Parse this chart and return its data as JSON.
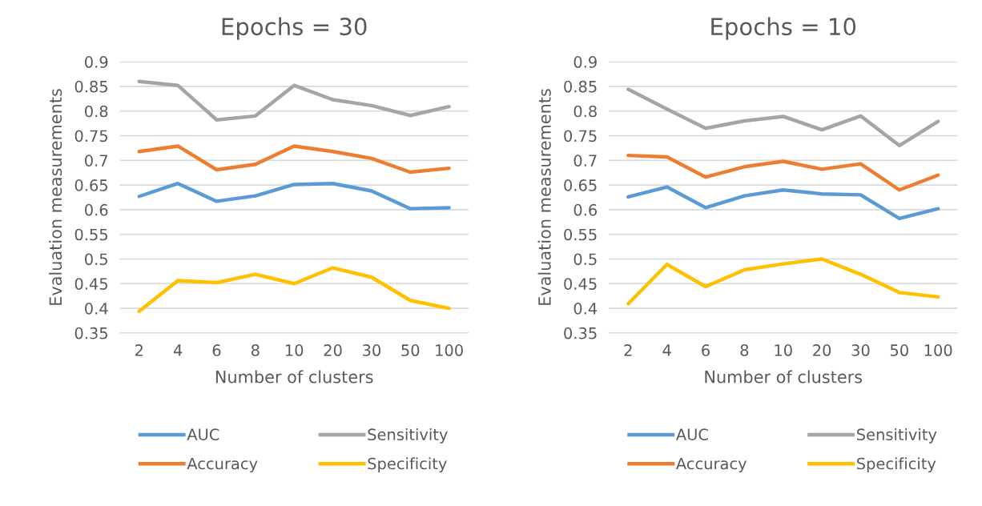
{
  "chart_data": [
    {
      "type": "line",
      "title": "Epochs = 30",
      "xlabel": "Number of clusters",
      "ylabel": "Evaluation measurements",
      "categories": [
        "2",
        "4",
        "6",
        "8",
        "10",
        "20",
        "30",
        "50",
        "100"
      ],
      "ylim": [
        0.35,
        0.9
      ],
      "yticks": [
        0.35,
        0.4,
        0.45,
        0.5,
        0.55,
        0.6,
        0.65,
        0.7,
        0.75,
        0.8,
        0.85,
        0.9
      ],
      "grid": "y",
      "legend": "bottom",
      "marker": "none",
      "line_style": "solid",
      "series": [
        {
          "name": "AUC",
          "color": "#5b9bd5",
          "values": [
            0.627,
            0.653,
            0.617,
            0.628,
            0.651,
            0.653,
            0.638,
            0.602,
            0.604
          ]
        },
        {
          "name": "Accuracy",
          "color": "#ed7d31",
          "values": [
            0.718,
            0.729,
            0.681,
            0.692,
            0.729,
            0.718,
            0.704,
            0.676,
            0.684
          ]
        },
        {
          "name": "Sensitivity",
          "color": "#a5a5a5",
          "values": [
            0.86,
            0.852,
            0.782,
            0.79,
            0.852,
            0.823,
            0.811,
            0.791,
            0.809
          ]
        },
        {
          "name": "Specificity",
          "color": "#ffc000",
          "values": [
            0.394,
            0.456,
            0.452,
            0.469,
            0.45,
            0.482,
            0.463,
            0.416,
            0.4
          ]
        }
      ]
    },
    {
      "type": "line",
      "title": "Epochs = 10",
      "xlabel": "Number of clusters",
      "ylabel": "Evaluation measurements",
      "categories": [
        "2",
        "4",
        "6",
        "8",
        "10",
        "20",
        "30",
        "50",
        "100"
      ],
      "ylim": [
        0.35,
        0.9
      ],
      "yticks": [
        0.35,
        0.4,
        0.45,
        0.5,
        0.55,
        0.6,
        0.65,
        0.7,
        0.75,
        0.8,
        0.85,
        0.9
      ],
      "grid": "y",
      "legend": "bottom",
      "marker": "none",
      "line_style": "solid",
      "series": [
        {
          "name": "AUC",
          "color": "#5b9bd5",
          "values": [
            0.626,
            0.646,
            0.604,
            0.628,
            0.64,
            0.632,
            0.63,
            0.582,
            0.602
          ]
        },
        {
          "name": "Accuracy",
          "color": "#ed7d31",
          "values": [
            0.71,
            0.707,
            0.666,
            0.687,
            0.698,
            0.682,
            0.693,
            0.64,
            0.67
          ]
        },
        {
          "name": "Sensitivity",
          "color": "#a5a5a5",
          "values": [
            0.844,
            0.804,
            0.765,
            0.78,
            0.789,
            0.762,
            0.79,
            0.73,
            0.779
          ]
        },
        {
          "name": "Specificity",
          "color": "#ffc000",
          "values": [
            0.409,
            0.489,
            0.444,
            0.478,
            0.49,
            0.5,
            0.469,
            0.432,
            0.423
          ]
        }
      ]
    }
  ]
}
